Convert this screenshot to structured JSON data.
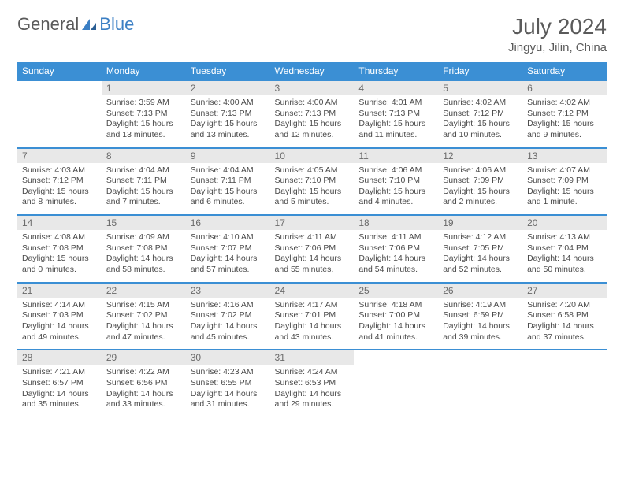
{
  "logo": {
    "text1": "General",
    "text2": "Blue"
  },
  "title": "July 2024",
  "location": "Jingyu, Jilin, China",
  "colors": {
    "header_bg": "#3b8fd4",
    "header_text": "#ffffff",
    "daynum_bg": "#e8e8e8",
    "row_border": "#3b8fd4",
    "body_text": "#4a4a4a",
    "title_text": "#5a5a5a",
    "logo_blue": "#3b7fc4",
    "page_bg": "#ffffff"
  },
  "typography": {
    "month_title_size_pt": 21,
    "location_size_pt": 11,
    "header_size_pt": 9,
    "cell_size_pt": 8
  },
  "weekdays": [
    "Sunday",
    "Monday",
    "Tuesday",
    "Wednesday",
    "Thursday",
    "Friday",
    "Saturday"
  ],
  "weeks": [
    {
      "days": [
        {
          "num": "",
          "sunrise": "",
          "sunset": "",
          "daylight": ""
        },
        {
          "num": "1",
          "sunrise": "Sunrise: 3:59 AM",
          "sunset": "Sunset: 7:13 PM",
          "daylight": "Daylight: 15 hours and 13 minutes."
        },
        {
          "num": "2",
          "sunrise": "Sunrise: 4:00 AM",
          "sunset": "Sunset: 7:13 PM",
          "daylight": "Daylight: 15 hours and 13 minutes."
        },
        {
          "num": "3",
          "sunrise": "Sunrise: 4:00 AM",
          "sunset": "Sunset: 7:13 PM",
          "daylight": "Daylight: 15 hours and 12 minutes."
        },
        {
          "num": "4",
          "sunrise": "Sunrise: 4:01 AM",
          "sunset": "Sunset: 7:13 PM",
          "daylight": "Daylight: 15 hours and 11 minutes."
        },
        {
          "num": "5",
          "sunrise": "Sunrise: 4:02 AM",
          "sunset": "Sunset: 7:12 PM",
          "daylight": "Daylight: 15 hours and 10 minutes."
        },
        {
          "num": "6",
          "sunrise": "Sunrise: 4:02 AM",
          "sunset": "Sunset: 7:12 PM",
          "daylight": "Daylight: 15 hours and 9 minutes."
        }
      ]
    },
    {
      "days": [
        {
          "num": "7",
          "sunrise": "Sunrise: 4:03 AM",
          "sunset": "Sunset: 7:12 PM",
          "daylight": "Daylight: 15 hours and 8 minutes."
        },
        {
          "num": "8",
          "sunrise": "Sunrise: 4:04 AM",
          "sunset": "Sunset: 7:11 PM",
          "daylight": "Daylight: 15 hours and 7 minutes."
        },
        {
          "num": "9",
          "sunrise": "Sunrise: 4:04 AM",
          "sunset": "Sunset: 7:11 PM",
          "daylight": "Daylight: 15 hours and 6 minutes."
        },
        {
          "num": "10",
          "sunrise": "Sunrise: 4:05 AM",
          "sunset": "Sunset: 7:10 PM",
          "daylight": "Daylight: 15 hours and 5 minutes."
        },
        {
          "num": "11",
          "sunrise": "Sunrise: 4:06 AM",
          "sunset": "Sunset: 7:10 PM",
          "daylight": "Daylight: 15 hours and 4 minutes."
        },
        {
          "num": "12",
          "sunrise": "Sunrise: 4:06 AM",
          "sunset": "Sunset: 7:09 PM",
          "daylight": "Daylight: 15 hours and 2 minutes."
        },
        {
          "num": "13",
          "sunrise": "Sunrise: 4:07 AM",
          "sunset": "Sunset: 7:09 PM",
          "daylight": "Daylight: 15 hours and 1 minute."
        }
      ]
    },
    {
      "days": [
        {
          "num": "14",
          "sunrise": "Sunrise: 4:08 AM",
          "sunset": "Sunset: 7:08 PM",
          "daylight": "Daylight: 15 hours and 0 minutes."
        },
        {
          "num": "15",
          "sunrise": "Sunrise: 4:09 AM",
          "sunset": "Sunset: 7:08 PM",
          "daylight": "Daylight: 14 hours and 58 minutes."
        },
        {
          "num": "16",
          "sunrise": "Sunrise: 4:10 AM",
          "sunset": "Sunset: 7:07 PM",
          "daylight": "Daylight: 14 hours and 57 minutes."
        },
        {
          "num": "17",
          "sunrise": "Sunrise: 4:11 AM",
          "sunset": "Sunset: 7:06 PM",
          "daylight": "Daylight: 14 hours and 55 minutes."
        },
        {
          "num": "18",
          "sunrise": "Sunrise: 4:11 AM",
          "sunset": "Sunset: 7:06 PM",
          "daylight": "Daylight: 14 hours and 54 minutes."
        },
        {
          "num": "19",
          "sunrise": "Sunrise: 4:12 AM",
          "sunset": "Sunset: 7:05 PM",
          "daylight": "Daylight: 14 hours and 52 minutes."
        },
        {
          "num": "20",
          "sunrise": "Sunrise: 4:13 AM",
          "sunset": "Sunset: 7:04 PM",
          "daylight": "Daylight: 14 hours and 50 minutes."
        }
      ]
    },
    {
      "days": [
        {
          "num": "21",
          "sunrise": "Sunrise: 4:14 AM",
          "sunset": "Sunset: 7:03 PM",
          "daylight": "Daylight: 14 hours and 49 minutes."
        },
        {
          "num": "22",
          "sunrise": "Sunrise: 4:15 AM",
          "sunset": "Sunset: 7:02 PM",
          "daylight": "Daylight: 14 hours and 47 minutes."
        },
        {
          "num": "23",
          "sunrise": "Sunrise: 4:16 AM",
          "sunset": "Sunset: 7:02 PM",
          "daylight": "Daylight: 14 hours and 45 minutes."
        },
        {
          "num": "24",
          "sunrise": "Sunrise: 4:17 AM",
          "sunset": "Sunset: 7:01 PM",
          "daylight": "Daylight: 14 hours and 43 minutes."
        },
        {
          "num": "25",
          "sunrise": "Sunrise: 4:18 AM",
          "sunset": "Sunset: 7:00 PM",
          "daylight": "Daylight: 14 hours and 41 minutes."
        },
        {
          "num": "26",
          "sunrise": "Sunrise: 4:19 AM",
          "sunset": "Sunset: 6:59 PM",
          "daylight": "Daylight: 14 hours and 39 minutes."
        },
        {
          "num": "27",
          "sunrise": "Sunrise: 4:20 AM",
          "sunset": "Sunset: 6:58 PM",
          "daylight": "Daylight: 14 hours and 37 minutes."
        }
      ]
    },
    {
      "days": [
        {
          "num": "28",
          "sunrise": "Sunrise: 4:21 AM",
          "sunset": "Sunset: 6:57 PM",
          "daylight": "Daylight: 14 hours and 35 minutes."
        },
        {
          "num": "29",
          "sunrise": "Sunrise: 4:22 AM",
          "sunset": "Sunset: 6:56 PM",
          "daylight": "Daylight: 14 hours and 33 minutes."
        },
        {
          "num": "30",
          "sunrise": "Sunrise: 4:23 AM",
          "sunset": "Sunset: 6:55 PM",
          "daylight": "Daylight: 14 hours and 31 minutes."
        },
        {
          "num": "31",
          "sunrise": "Sunrise: 4:24 AM",
          "sunset": "Sunset: 6:53 PM",
          "daylight": "Daylight: 14 hours and 29 minutes."
        },
        {
          "num": "",
          "sunrise": "",
          "sunset": "",
          "daylight": ""
        },
        {
          "num": "",
          "sunrise": "",
          "sunset": "",
          "daylight": ""
        },
        {
          "num": "",
          "sunrise": "",
          "sunset": "",
          "daylight": ""
        }
      ]
    }
  ]
}
